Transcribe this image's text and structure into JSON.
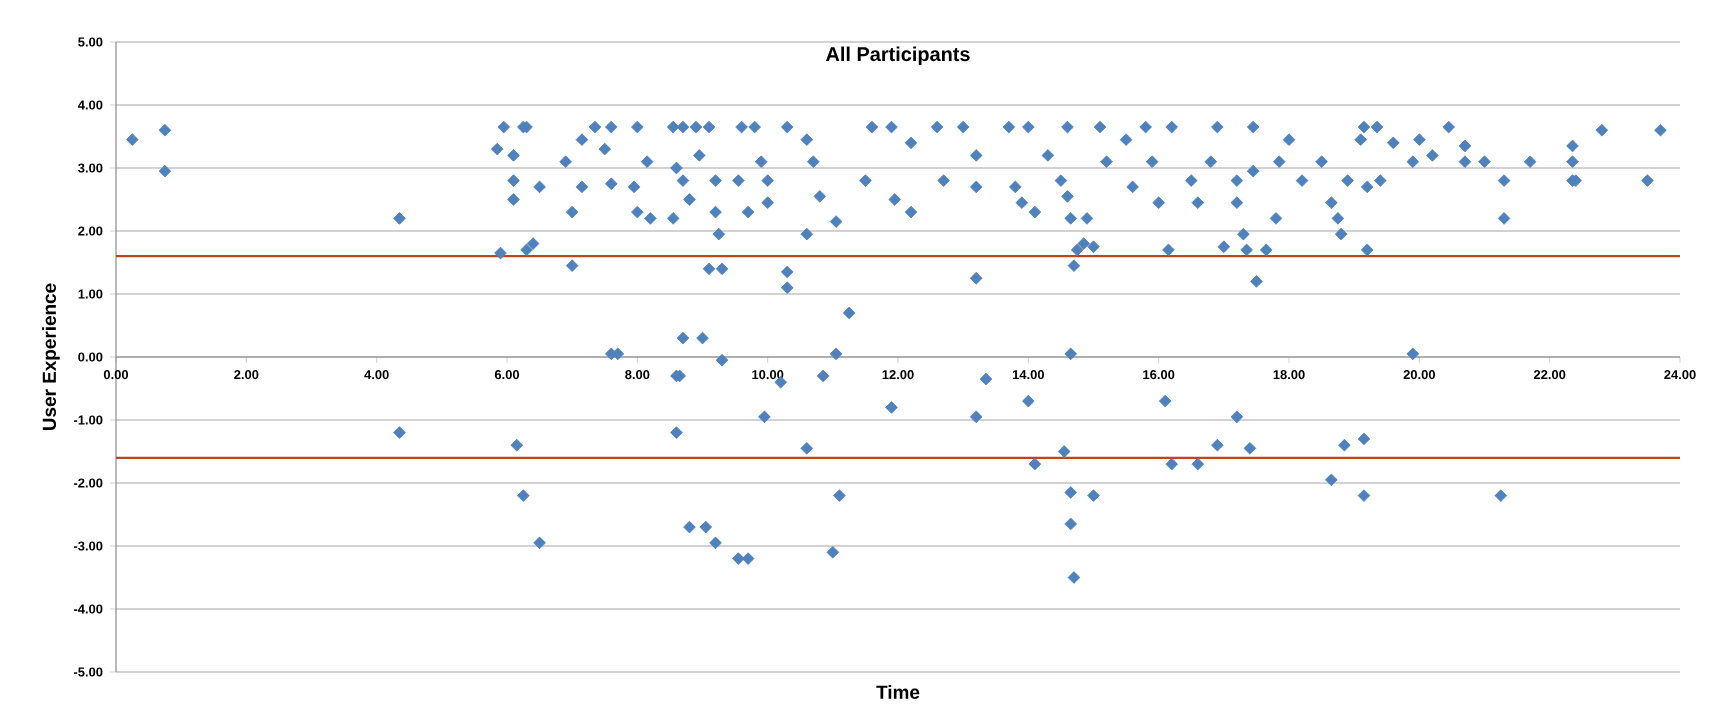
{
  "chart_data": {
    "type": "scatter",
    "title": "All Participants",
    "xlabel": "Time",
    "ylabel": "User Experience",
    "color": "#4f81bd",
    "marker": "diamond",
    "grid": "y",
    "xlim": [
      0,
      24
    ],
    "ylim": [
      -5,
      5
    ],
    "xticks": [
      {
        "value": 0,
        "label": "0.00"
      },
      {
        "value": 2,
        "label": "2.00"
      },
      {
        "value": 4,
        "label": "4.00"
      },
      {
        "value": 6,
        "label": "6.00"
      },
      {
        "value": 8,
        "label": "8.00"
      },
      {
        "value": 10,
        "label": "10.00"
      },
      {
        "value": 12,
        "label": "12.00"
      },
      {
        "value": 14,
        "label": "14.00"
      },
      {
        "value": 16,
        "label": "16.00"
      },
      {
        "value": 18,
        "label": "18.00"
      },
      {
        "value": 20,
        "label": "20.00"
      },
      {
        "value": 22,
        "label": "22.00"
      },
      {
        "value": 24,
        "label": "24.00"
      }
    ],
    "yticks": [
      {
        "value": -5,
        "label": "-5.00"
      },
      {
        "value": -4,
        "label": "-4.00"
      },
      {
        "value": -3,
        "label": "-3.00"
      },
      {
        "value": -2,
        "label": "-2.00"
      },
      {
        "value": -1,
        "label": "-1.00"
      },
      {
        "value": 0,
        "label": "0.00"
      },
      {
        "value": 1,
        "label": "1.00"
      },
      {
        "value": 2,
        "label": "2.00"
      },
      {
        "value": 3,
        "label": "3.00"
      },
      {
        "value": 4,
        "label": "4.00"
      },
      {
        "value": 5,
        "label": "5.00"
      }
    ],
    "ref_lines": [
      {
        "axis": "y",
        "value": 1.6,
        "color": "#c0461a"
      },
      {
        "axis": "y",
        "value": -1.6,
        "color": "#c0461a"
      }
    ],
    "x": [
      0.25,
      0.75,
      0.75,
      4.35,
      4.35,
      5.85,
      5.95,
      6.1,
      6.1,
      6.1,
      6.25,
      6.3,
      5.9,
      6.3,
      6.4,
      6.5,
      6.15,
      6.25,
      6.5,
      6.9,
      7.0,
      7.0,
      7.15,
      7.15,
      7.35,
      7.5,
      7.6,
      7.6,
      7.6,
      7.7,
      7.95,
      8.0,
      8.0,
      8.15,
      8.2,
      8.55,
      8.7,
      8.9,
      9.1,
      8.6,
      8.7,
      8.95,
      9.2,
      8.55,
      8.8,
      9.2,
      9.25,
      9.1,
      9.3,
      8.6,
      8.7,
      9.0,
      8.65,
      9.3,
      8.6,
      8.8,
      9.05,
      9.2,
      9.55,
      9.7,
      9.6,
      9.8,
      9.55,
      9.7,
      9.9,
      10.0,
      10.0,
      10.3,
      10.3,
      10.3,
      10.2,
      9.95,
      10.6,
      10.6,
      10.7,
      10.8,
      10.85,
      10.6,
      11.0,
      11.05,
      11.1,
      11.05,
      11.25,
      11.6,
      11.9,
      11.5,
      11.95,
      12.2,
      12.2,
      11.9,
      12.6,
      12.7,
      13.0,
      13.2,
      13.2,
      13.2,
      13.2,
      13.35,
      13.7,
      13.8,
      13.9,
      14.0,
      14.1,
      14.0,
      14.1,
      14.3,
      14.5,
      14.6,
      14.6,
      14.65,
      14.7,
      14.75,
      14.85,
      15.0,
      14.9,
      14.65,
      14.55,
      14.65,
      14.65,
      14.7,
      15.0,
      15.1,
      15.2,
      15.5,
      15.6,
      15.8,
      15.9,
      16.0,
      16.15,
      16.1,
      16.2,
      16.6,
      16.9,
      16.2,
      16.5,
      16.6,
      16.8,
      16.9,
      17.0,
      17.2,
      17.2,
      17.4,
      17.3,
      17.35,
      17.45,
      17.5,
      17.65,
      17.8,
      17.85,
      18.0,
      17.45,
      17.2,
      18.2,
      18.5,
      18.65,
      18.75,
      18.8,
      18.65,
      18.85,
      18.9,
      19.1,
      19.15,
      19.2,
      19.2,
      19.15,
      19.15,
      19.35,
      19.4,
      19.6,
      19.9,
      19.9,
      20.0,
      20.2,
      20.45,
      20.7,
      20.7,
      21.0,
      21.3,
      21.3,
      21.25,
      21.7,
      22.35,
      22.35,
      22.35,
      22.4,
      22.8,
      23.5,
      23.7
    ],
    "values": [
      3.45,
      3.6,
      2.95,
      2.2,
      -1.2,
      3.3,
      3.65,
      3.2,
      2.8,
      2.5,
      3.65,
      3.65,
      1.65,
      1.7,
      1.8,
      2.7,
      -1.4,
      -2.2,
      -2.95,
      3.1,
      2.3,
      1.45,
      3.45,
      2.7,
      3.65,
      3.3,
      3.65,
      2.75,
      0.05,
      0.05,
      2.7,
      3.65,
      2.3,
      3.1,
      2.2,
      3.65,
      3.65,
      3.65,
      3.65,
      3.0,
      2.8,
      3.2,
      2.8,
      2.2,
      2.5,
      2.3,
      1.95,
      1.4,
      1.4,
      -0.3,
      0.3,
      0.3,
      -0.3,
      -0.05,
      -1.2,
      -2.7,
      -2.7,
      -2.95,
      -3.2,
      -3.2,
      3.65,
      3.65,
      2.8,
      2.3,
      3.1,
      2.8,
      2.45,
      3.65,
      1.35,
      1.1,
      -0.4,
      -0.95,
      3.45,
      1.95,
      3.1,
      2.55,
      -0.3,
      -1.45,
      -3.1,
      0.05,
      -2.2,
      2.15,
      0.7,
      3.65,
      3.65,
      2.8,
      2.5,
      2.3,
      3.4,
      -0.8,
      3.65,
      2.8,
      3.65,
      3.2,
      2.7,
      1.25,
      -0.95,
      -0.35,
      3.65,
      2.7,
      2.45,
      3.65,
      2.3,
      -0.7,
      -1.7,
      3.2,
      2.8,
      3.65,
      2.55,
      2.2,
      1.45,
      1.7,
      1.8,
      1.75,
      2.2,
      0.05,
      -1.5,
      -2.15,
      -2.65,
      -3.5,
      -2.2,
      3.65,
      3.1,
      3.45,
      2.7,
      3.65,
      3.1,
      2.45,
      1.7,
      -0.7,
      -1.7,
      -1.7,
      -1.4,
      3.65,
      2.8,
      2.45,
      3.1,
      3.65,
      1.75,
      2.45,
      -0.95,
      -1.45,
      1.95,
      1.7,
      2.95,
      1.2,
      1.7,
      2.2,
      3.1,
      3.45,
      3.65,
      2.8,
      2.8,
      3.1,
      2.45,
      2.2,
      1.95,
      -1.95,
      -1.4,
      2.8,
      3.45,
      3.65,
      2.7,
      1.7,
      -1.3,
      -2.2,
      3.65,
      2.8,
      3.4,
      0.05,
      3.1,
      3.45,
      3.2,
      3.65,
      3.35,
      3.1,
      3.1,
      2.8,
      2.2,
      -2.2,
      3.1,
      3.35,
      3.1,
      2.8,
      2.8,
      3.6,
      2.8,
      3.6
    ]
  }
}
